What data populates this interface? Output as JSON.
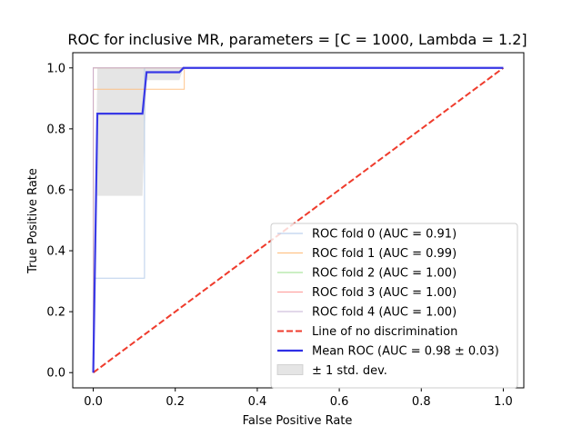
{
  "chart_data": {
    "type": "line",
    "title": "ROC for inclusive MR, parameters = [C = 1000, Lambda = 1.2]",
    "xlabel": "False Positive Rate",
    "ylabel": "True Positive Rate",
    "xlim": [
      -0.05,
      1.05
    ],
    "ylim": [
      -0.05,
      1.05
    ],
    "xticks": [
      0.0,
      0.2,
      0.4,
      0.6,
      0.8,
      1.0
    ],
    "yticks": [
      0.0,
      0.2,
      0.4,
      0.6,
      0.8,
      1.0
    ],
    "xtick_labels": [
      "0.0",
      "0.2",
      "0.4",
      "0.6",
      "0.8",
      "1.0"
    ],
    "ytick_labels": [
      "0.0",
      "0.2",
      "0.4",
      "0.6",
      "0.8",
      "1.0"
    ],
    "grid": false,
    "legend_position": "lower-right",
    "series": [
      {
        "name": "ROC fold 0 (AUC = 0.91)",
        "color": "#aec7e8",
        "style": "solid",
        "points": [
          [
            0.0,
            0.0
          ],
          [
            0.0,
            0.31
          ],
          [
            0.125,
            0.31
          ],
          [
            0.125,
            1.0
          ],
          [
            1.0,
            1.0
          ]
        ]
      },
      {
        "name": "ROC fold 1 (AUC = 0.99)",
        "color": "#ffbb78",
        "style": "solid",
        "points": [
          [
            0.0,
            0.0
          ],
          [
            0.0,
            0.93
          ],
          [
            0.222,
            0.93
          ],
          [
            0.222,
            1.0
          ],
          [
            1.0,
            1.0
          ]
        ]
      },
      {
        "name": "ROC fold 2 (AUC = 1.00)",
        "color": "#98df8a",
        "style": "solid",
        "points": [
          [
            0.0,
            0.0
          ],
          [
            0.0,
            1.0
          ],
          [
            1.0,
            1.0
          ]
        ]
      },
      {
        "name": "ROC fold 3 (AUC = 1.00)",
        "color": "#ff9896",
        "style": "solid",
        "points": [
          [
            0.0,
            0.0
          ],
          [
            0.0,
            1.0
          ],
          [
            1.0,
            1.0
          ]
        ]
      },
      {
        "name": "ROC fold 4 (AUC = 1.00)",
        "color": "#c5b0d5",
        "style": "solid",
        "points": [
          [
            0.0,
            0.0
          ],
          [
            0.0,
            1.0
          ],
          [
            1.0,
            1.0
          ]
        ]
      },
      {
        "name": "Line of no discrimination",
        "color": "#ef3b2c",
        "style": "dashed",
        "points": [
          [
            0.0,
            0.0
          ],
          [
            1.0,
            1.0
          ]
        ]
      },
      {
        "name": "Mean ROC (AUC = 0.98 ± 0.03)",
        "color": "#2f2fe6",
        "style": "bold",
        "points": [
          [
            0.0,
            0.0
          ],
          [
            0.01,
            0.85
          ],
          [
            0.12,
            0.85
          ],
          [
            0.13,
            0.986
          ],
          [
            0.21,
            0.986
          ],
          [
            0.22,
            1.0
          ],
          [
            1.0,
            1.0
          ]
        ]
      }
    ],
    "std_band": {
      "name": "± 1 std. dev.",
      "color": "#bdbdbd",
      "x": [
        0.0,
        0.01,
        0.12,
        0.13,
        0.21,
        0.22,
        1.0
      ],
      "upper": [
        0.0,
        1.0,
        1.0,
        1.0,
        1.0,
        1.0,
        1.0
      ],
      "lower": [
        0.0,
        0.58,
        0.58,
        0.96,
        0.96,
        1.0,
        1.0
      ]
    }
  }
}
